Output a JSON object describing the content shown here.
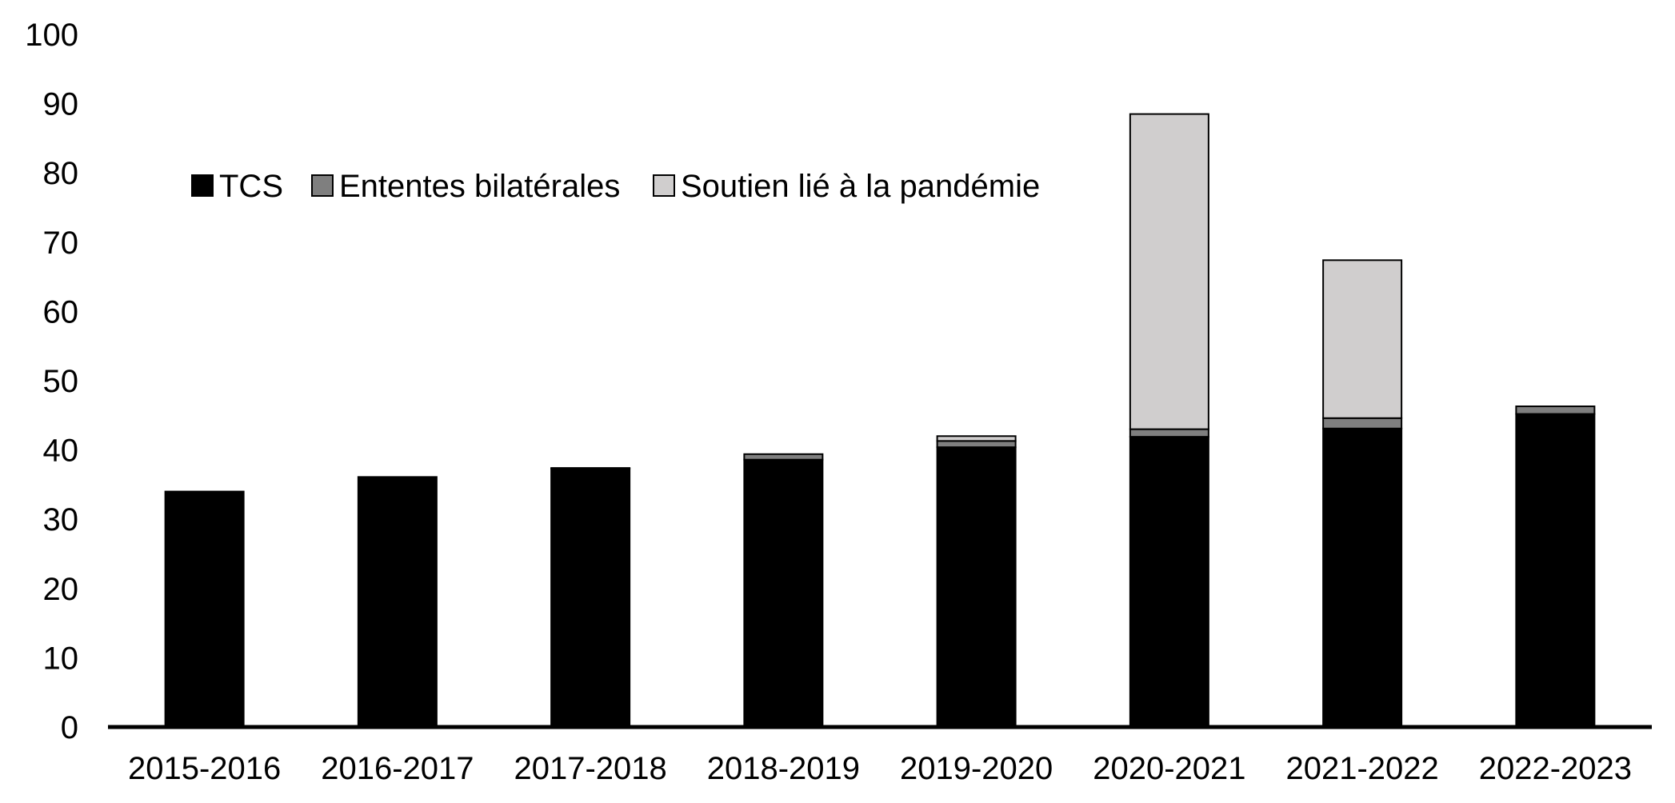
{
  "chart_data": {
    "type": "bar",
    "stacked": true,
    "categories": [
      "2015-2016",
      "2016-2017",
      "2017-2018",
      "2018-2019",
      "2019-2020",
      "2020-2021",
      "2021-2022",
      "2022-2023"
    ],
    "series": [
      {
        "name": "TCS",
        "color": "#000000",
        "values": [
          34.0,
          36.1,
          37.3,
          38.6,
          40.4,
          41.9,
          43.1,
          45.2
        ]
      },
      {
        "name": "Ententes bilatérales",
        "color": "#7f7f7f",
        "values": [
          0.0,
          0.0,
          0.1,
          0.8,
          0.9,
          1.1,
          1.5,
          1.1
        ]
      },
      {
        "name": "Soutien lié à la pandémie",
        "color": "#d0cece",
        "values": [
          0.0,
          0.0,
          0.0,
          0.0,
          0.7,
          45.5,
          22.8,
          0.0
        ]
      }
    ],
    "yticks": [
      0,
      10,
      20,
      30,
      40,
      50,
      60,
      70,
      80,
      90,
      100
    ],
    "ylim": [
      0,
      100
    ],
    "grid": false,
    "legend_position": "top-left"
  }
}
